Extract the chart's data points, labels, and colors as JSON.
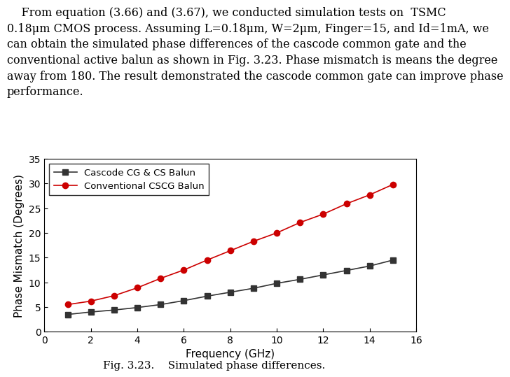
{
  "title": "Fig. 3.23.    Simulated phase differences.",
  "xlabel": "Frequency (GHz)",
  "ylabel": "Phase Mismatch (Degrees)",
  "xlim": [
    0,
    16
  ],
  "ylim": [
    0,
    35
  ],
  "xticks": [
    0,
    2,
    4,
    6,
    8,
    10,
    12,
    14,
    16
  ],
  "yticks": [
    0,
    5,
    10,
    15,
    20,
    25,
    30,
    35
  ],
  "series1": {
    "label": "Cascode CG & CS Balun",
    "color": "#333333",
    "marker": "s",
    "linestyle": "-",
    "x": [
      1,
      2,
      3,
      4,
      5,
      6,
      7,
      8,
      9,
      10,
      11,
      12,
      13,
      14,
      15
    ],
    "y": [
      3.5,
      4.0,
      4.4,
      4.9,
      5.5,
      6.3,
      7.2,
      8.0,
      8.8,
      9.8,
      10.6,
      11.5,
      12.4,
      13.3,
      14.5
    ]
  },
  "series2": {
    "label": "Conventional CSCG Balun",
    "color": "#cc0000",
    "marker": "o",
    "linestyle": "-",
    "x": [
      1,
      2,
      3,
      4,
      5,
      6,
      7,
      8,
      9,
      10,
      11,
      12,
      13,
      14,
      15
    ],
    "y": [
      5.5,
      6.2,
      7.3,
      8.9,
      10.8,
      12.5,
      14.5,
      16.4,
      18.3,
      20.0,
      22.1,
      23.8,
      25.9,
      27.7,
      29.8
    ]
  },
  "paragraph_lines": [
    "    From equation (3.66) and (3.67), we conducted simulation tests on  TSMC",
    "0.18μm CMOS process. Assuming L=0.18μm, W=2μm, Finger=15, and Id=1mA, we",
    "can obtain the simulated phase differences of the cascode common gate and the",
    "conventional active balun as shown in Fig. 3.23. Phase mismatch is means the degree",
    "away from 180. The result demonstrated the cascode common gate can improve phase",
    "performance."
  ],
  "legend_loc": "upper left",
  "background_color": "#ffffff",
  "figure_caption_fontsize": 11,
  "axis_label_fontsize": 11,
  "tick_fontsize": 10,
  "legend_fontsize": 9.5,
  "text_fontsize": 11.5,
  "marker_size": 6,
  "linewidth": 1.2
}
